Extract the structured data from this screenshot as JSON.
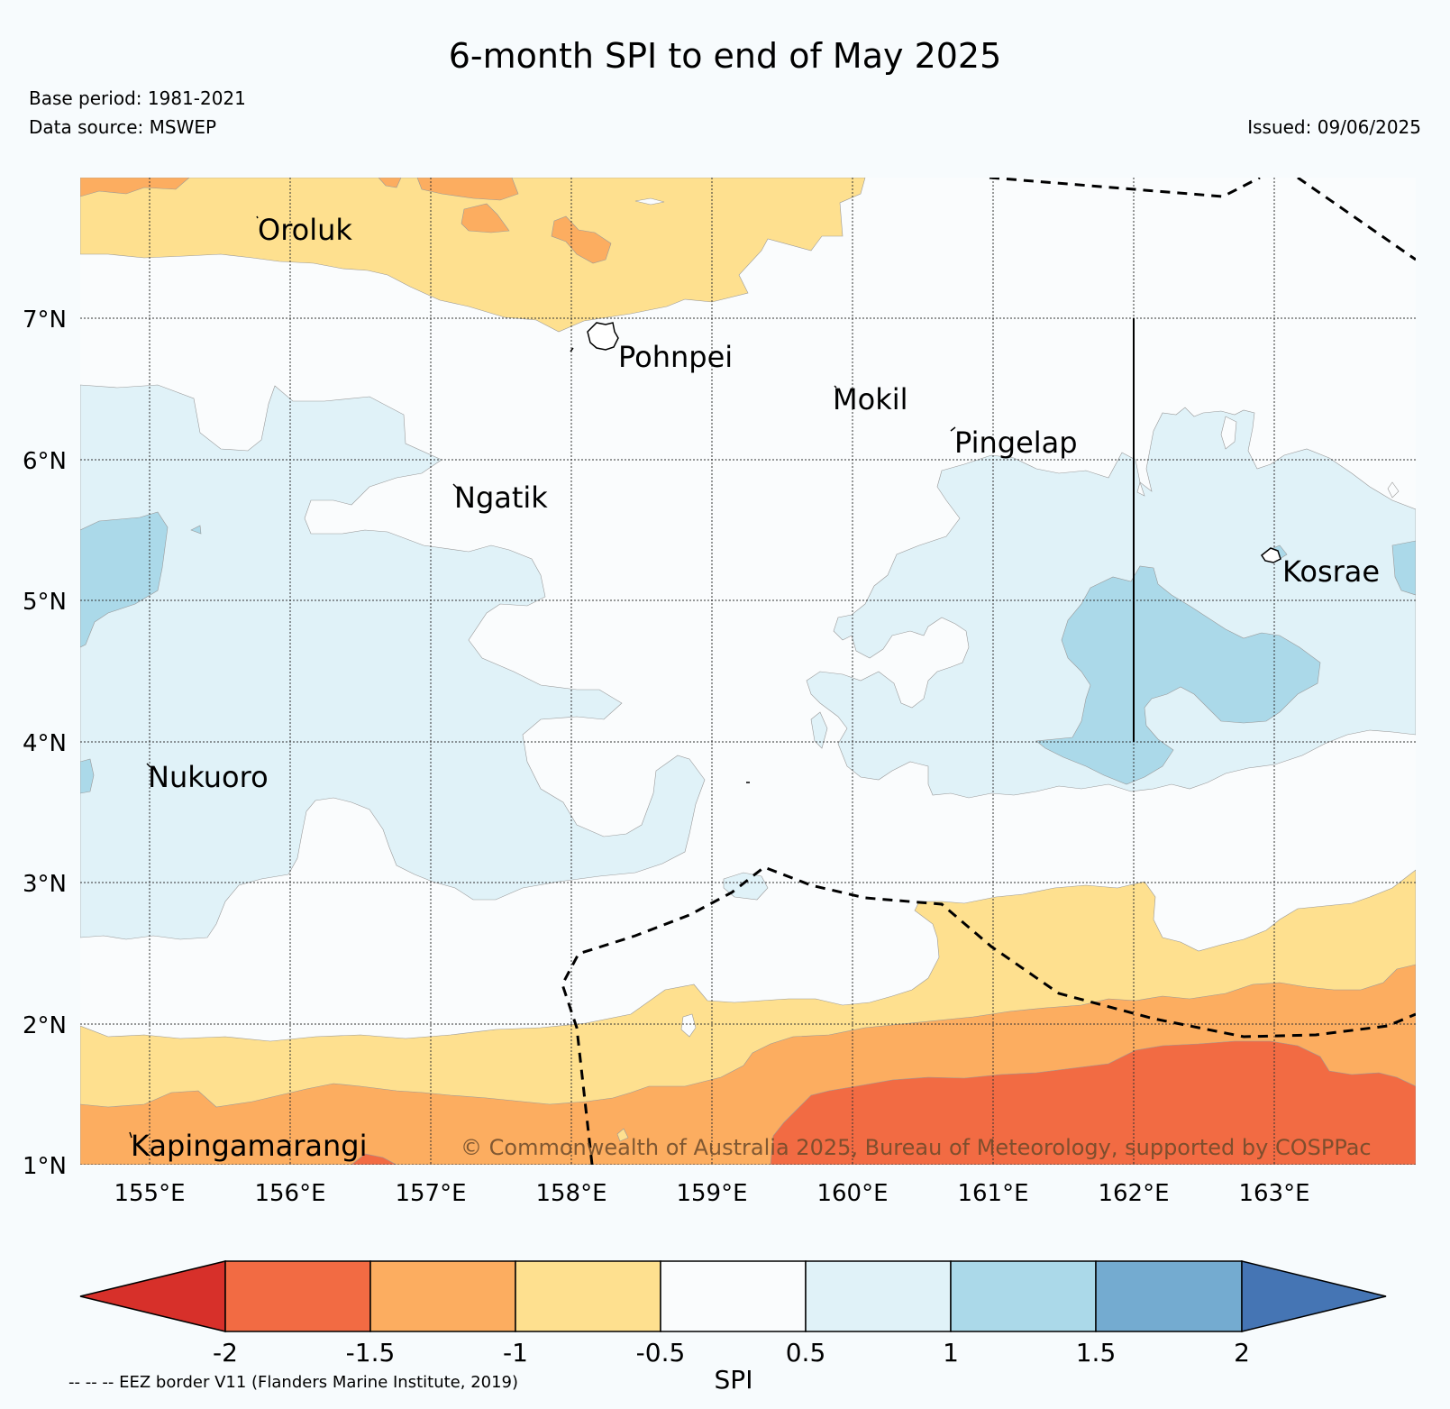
{
  "title": "6-month SPI to end of May 2025",
  "base_period": "Base period: 1981-2021",
  "data_source": "Data source: MSWEP",
  "issued": "Issued: 09/06/2025",
  "copyright": "© Commonwealth of Australia 2025, Bureau of Meteorology, supported by COSPPac",
  "eez_note": "-- -- -- EEZ border V11 (Flanders Marine Institute, 2019)",
  "map": {
    "lat_labels": [
      "7°N",
      "6°N",
      "5°N",
      "4°N",
      "3°N",
      "2°N",
      "1°N"
    ],
    "lon_labels": [
      "155°E",
      "156°E",
      "157°E",
      "158°E",
      "159°E",
      "160°E",
      "161°E",
      "162°E",
      "163°E"
    ],
    "places": [
      "Oroluk",
      "Pohnpei",
      "Mokil",
      "Pingelap",
      "Ngatik",
      "Kosrae",
      "Nukuoro",
      "Kapingamarangi"
    ]
  },
  "colorbar": {
    "label": "SPI",
    "ticks": [
      "-2",
      "-1.5",
      "-1",
      "-0.5",
      "0.5",
      "1",
      "1.5",
      "2"
    ],
    "colors": {
      "below_-2": "#d7302a",
      "-2_to_-1.5": "#f26b43",
      "-1.5_to_-1": "#fcad60",
      "-1_to_-0.5": "#fee08f",
      "-0.5_to_0.5": "#fafcfd",
      "0.5_to_1": "#e0f2f8",
      "1_to_1.5": "#abd9e9",
      "1.5_to_2": "#74abd0",
      "above_2": "#4575b4"
    }
  }
}
